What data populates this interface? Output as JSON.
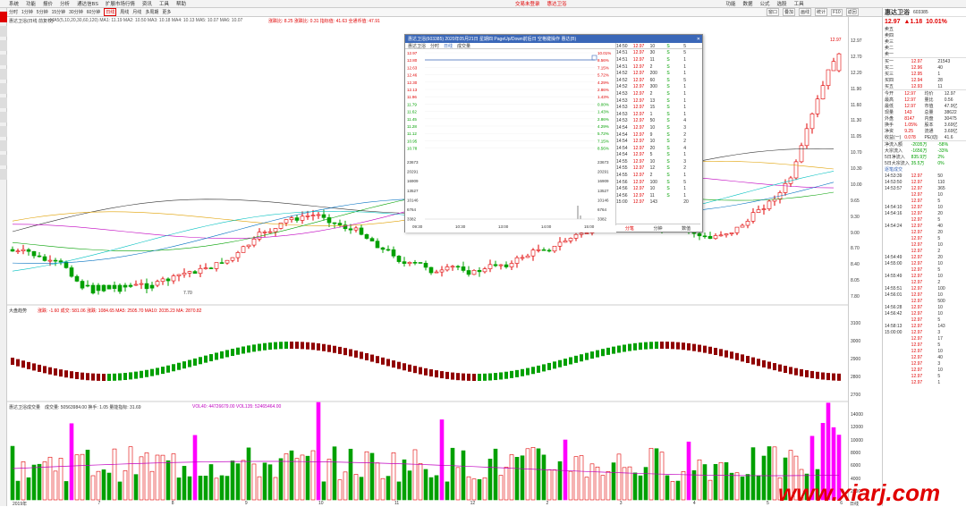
{
  "menubar": {
    "items": [
      "系统",
      "功能",
      "报价",
      "分析",
      "通达信BS",
      "扩展市场行情",
      "资讯",
      "工具",
      "帮助"
    ],
    "center_red": "交易未登录",
    "center_right": "惠达卫浴",
    "right_items": [
      "功能",
      "数据",
      "公式",
      "选股",
      "工具"
    ]
  },
  "toolbar": {
    "items": [
      "分时",
      "1分钟",
      "5分钟",
      "15分钟",
      "30分钟",
      "60分钟",
      "日线",
      "周线",
      "月线",
      "多周期",
      "更多"
    ],
    "active": "日线",
    "right_items": [
      "窗口",
      "叠加",
      "画线",
      "统计",
      "F10",
      "返回"
    ]
  },
  "main_header": {
    "stock": "惠达卫浴(日线 前复权)",
    "ma_line": "MA5(5,10,20,30,60,120)  MA1: 11.19  MA2: 10.50  MA3: 10.18  MA4: 10.13  MA5: 10.07  MA6: 10.07",
    "extra": "涨跌比: 8.25  涨跌比: 0.31  指标值: 41.63  全通币值: 47.91",
    "low_label": "7.70",
    "price_label": "12.97"
  },
  "popup": {
    "title": "惠达卫浴(603385)  2020年05月21日 星期四  PageUp/Down前后日  空格键操作  惠达(B)",
    "tabs": [
      "惠达卫浴",
      "分时",
      "日线",
      "成交量"
    ],
    "yaxis": [
      "12.97",
      "12.80",
      "12.63",
      "12.46",
      "12.30",
      "12.13",
      "11.96",
      "11.79",
      "11.62",
      "11.45",
      "11.28",
      "11.12",
      "10.95",
      "10.78"
    ],
    "pct": [
      "10.01%",
      "8.56%",
      "7.15%",
      "5.72%",
      "4.29%",
      "2.86%",
      "1.43%",
      "0.00%",
      "1.43%",
      "2.86%",
      "4.29%",
      "5.72%",
      "7.15%",
      "8.56%"
    ],
    "vol": [
      "23673",
      "20291",
      "16909",
      "13527",
      "10146",
      "6764",
      "3382"
    ],
    "xaxis": [
      "09:30",
      "10:30",
      "13:00",
      "14:00",
      "15:00"
    ],
    "ticks": [
      {
        "t": "14:50",
        "p": "12.97",
        "v": "10",
        "s": "S",
        "n": "5"
      },
      {
        "t": "14:51",
        "p": "12.97",
        "v": "30",
        "s": "S",
        "n": "5"
      },
      {
        "t": "14:51",
        "p": "12.97",
        "v": "11",
        "s": "S",
        "n": "1"
      },
      {
        "t": "14:51",
        "p": "12.97",
        "v": "2",
        "s": "S",
        "n": "1"
      },
      {
        "t": "14:52",
        "p": "12.97",
        "v": "200",
        "s": "S",
        "n": "1"
      },
      {
        "t": "14:52",
        "p": "12.97",
        "v": "60",
        "s": "S",
        "n": "5"
      },
      {
        "t": "14:52",
        "p": "12.97",
        "v": "300",
        "s": "S",
        "n": "1"
      },
      {
        "t": "14:53",
        "p": "12.97",
        "v": "2",
        "s": "S",
        "n": "1"
      },
      {
        "t": "14:53",
        "p": "12.97",
        "v": "13",
        "s": "S",
        "n": "1"
      },
      {
        "t": "14:53",
        "p": "12.97",
        "v": "15",
        "s": "S",
        "n": "1"
      },
      {
        "t": "14:53",
        "p": "12.97",
        "v": "1",
        "s": "S",
        "n": "1"
      },
      {
        "t": "14:53",
        "p": "12.97",
        "v": "50",
        "s": "S",
        "n": "4"
      },
      {
        "t": "14:54",
        "p": "12.97",
        "v": "10",
        "s": "S",
        "n": "3"
      },
      {
        "t": "14:54",
        "p": "12.97",
        "v": "9",
        "s": "S",
        "n": "2"
      },
      {
        "t": "14:54",
        "p": "12.97",
        "v": "10",
        "s": "S",
        "n": "2"
      },
      {
        "t": "14:54",
        "p": "12.97",
        "v": "20",
        "s": "S",
        "n": "4"
      },
      {
        "t": "14:54",
        "p": "12.97",
        "v": "5",
        "s": "S",
        "n": "1"
      },
      {
        "t": "14:55",
        "p": "12.97",
        "v": "10",
        "s": "S",
        "n": "3"
      },
      {
        "t": "14:55",
        "p": "12.97",
        "v": "12",
        "s": "S",
        "n": "2"
      },
      {
        "t": "14:55",
        "p": "12.97",
        "v": "2",
        "s": "S",
        "n": "1"
      },
      {
        "t": "14:56",
        "p": "12.97",
        "v": "100",
        "s": "S",
        "n": "5"
      },
      {
        "t": "14:56",
        "p": "12.97",
        "v": "10",
        "s": "S",
        "n": "1"
      },
      {
        "t": "14:56",
        "p": "12.97",
        "v": "11",
        "s": "S",
        "n": "1"
      },
      {
        "t": "15:00",
        "p": "12.97",
        "v": "143",
        "s": "",
        "n": "20"
      }
    ],
    "foot": [
      "分笔",
      "分钟",
      "数值"
    ]
  },
  "indicator2": {
    "label": "大盘趋势",
    "values": "涨跌: -1.60  成交: 581.06  涨跌: 1084.65  MA5: 2505.70  MA10: 2035.23  MA: 2870.82"
  },
  "indicator3": {
    "label": "惠达卫浴成交量",
    "values": "成交量: 50563984.00  换手: 1.05  量能指标: 31.69",
    "vol": "VOL40: 44726679.00  VOL135: 52465464.00"
  },
  "right_axis_main": [
    "12.97",
    "12.70",
    "12.20",
    "11.90",
    "11.60",
    "11.30",
    "11.05",
    "10.70",
    "10.30",
    "10.00",
    "9.65",
    "9.30",
    "9.00",
    "8.70",
    "8.40",
    "8.05",
    "7.80"
  ],
  "right_axis_mid": [
    "3100",
    "3000",
    "2900",
    "2800",
    "2700"
  ],
  "right_axis_vol": [
    "14000",
    "12000",
    "10000",
    "8000",
    "6000",
    "4000",
    "2000"
  ],
  "dates": [
    "2019年",
    "7",
    "8",
    "9",
    "10",
    "11",
    "12",
    "2",
    "3",
    "4",
    "5",
    "6"
  ],
  "quote": {
    "name": "惠达卫浴",
    "code": "603385",
    "price": "12.97",
    "change": "▲1.18",
    "pct": "10.01%",
    "asks": [
      [
        "卖五",
        "",
        ""
      ],
      [
        "卖四",
        "",
        ""
      ],
      [
        "卖三",
        "",
        ""
      ],
      [
        "卖二",
        "",
        ""
      ],
      [
        "卖一",
        "",
        ""
      ]
    ],
    "bids": [
      [
        "买一",
        "12.97",
        "21543"
      ],
      [
        "买二",
        "12.96",
        "40"
      ],
      [
        "买三",
        "12.95",
        "1"
      ],
      [
        "买四",
        "12.94",
        "28"
      ],
      [
        "买五",
        "12.93",
        "11"
      ]
    ],
    "stats": [
      [
        "今开",
        "12.97",
        "均价",
        "12.97"
      ],
      [
        "最高",
        "12.97",
        "量比",
        "0.56"
      ],
      [
        "最低",
        "12.97",
        "市值",
        "47.9亿"
      ],
      [
        "现量",
        "143",
        "总量",
        "38622"
      ],
      [
        "外盘",
        "8147",
        "内盘",
        "30475"
      ],
      [
        "换手",
        "1.05%",
        "股本",
        "3.69亿"
      ],
      [
        "净资",
        "9.25",
        "流通",
        "3.69亿"
      ],
      [
        "收益(一)",
        "0.078",
        "PE(动)",
        "41.6"
      ]
    ],
    "flows": [
      [
        "净流入额",
        "-2035万",
        "-58%"
      ],
      [
        "大宗流入",
        "-1656万",
        "-33%"
      ],
      [
        "5日净流入",
        "835.9万",
        "2%"
      ],
      [
        "5日大宗流入",
        "35.5万",
        "0%"
      ]
    ],
    "trades_header": "逐笔成交",
    "trades": [
      [
        "14:53:39",
        "12.97",
        "50"
      ],
      [
        "14:53:50",
        "12.97",
        "110"
      ],
      [
        "14:53:57",
        "12.97",
        "365"
      ],
      [
        "",
        "12.97",
        "10"
      ],
      [
        "",
        "12.97",
        "5"
      ],
      [
        "14:54:10",
        "12.97",
        "10"
      ],
      [
        "14:54:16",
        "12.97",
        "20"
      ],
      [
        "",
        "12.97",
        "5"
      ],
      [
        "14:54:24",
        "12.97",
        "40"
      ],
      [
        "",
        "12.97",
        "20"
      ],
      [
        "",
        "12.97",
        "5"
      ],
      [
        "",
        "12.97",
        "10"
      ],
      [
        "",
        "12.97",
        "2"
      ],
      [
        "14:54:49",
        "12.97",
        "20"
      ],
      [
        "14:55:00",
        "12.97",
        "10"
      ],
      [
        "",
        "12.97",
        "5"
      ],
      [
        "14:55:49",
        "12.97",
        "10"
      ],
      [
        "",
        "12.97",
        "2"
      ],
      [
        "14:55:51",
        "12.97",
        "100"
      ],
      [
        "14:56:01",
        "12.97",
        "10"
      ],
      [
        "",
        "12.97",
        "500"
      ],
      [
        "14:56:28",
        "12.97",
        "10"
      ],
      [
        "14:56:42",
        "12.97",
        "10"
      ],
      [
        "",
        "12.97",
        "5"
      ],
      [
        "14:58:13",
        "12.97",
        "143"
      ],
      [
        "15:00:00",
        "12.97",
        "3"
      ],
      [
        "",
        "12.97",
        "17"
      ],
      [
        "",
        "12.97",
        "5"
      ],
      [
        "",
        "12.97",
        "10"
      ],
      [
        "",
        "12.97",
        "40"
      ],
      [
        "",
        "12.97",
        "3"
      ],
      [
        "",
        "12.97",
        "10"
      ],
      [
        "",
        "12.97",
        "5"
      ],
      [
        "",
        "12.97",
        "1"
      ]
    ]
  },
  "right_tab": "日线",
  "watermark": "www.xiarj.com"
}
